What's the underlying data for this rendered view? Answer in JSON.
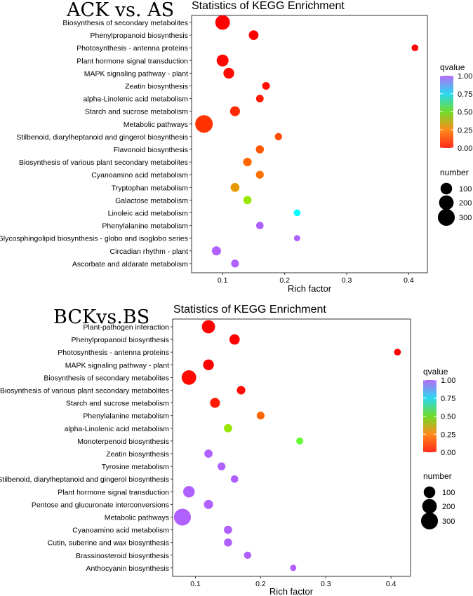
{
  "legend_labels": {
    "color_title": "qvalue",
    "size_title": "number"
  },
  "chart_data": [
    {
      "type": "scatter",
      "panel_label": "ACK vs. AS",
      "title": "Statistics of KEGG Enrichment",
      "xlabel": "Rich factor",
      "ylabel": "",
      "xlim": [
        0.05,
        0.43
      ],
      "x_ticks": [
        "0.1",
        "0.2",
        "0.3",
        "0.4"
      ],
      "x_tick_values": [
        0.1,
        0.2,
        0.3,
        0.4
      ],
      "color_scale": {
        "name": "qvalue",
        "range": [
          0,
          1
        ],
        "ticks": [
          "0.00",
          "0.25",
          "0.50",
          "0.75",
          "1.00"
        ],
        "colors": [
          "#ff0000",
          "#ff8000",
          "#80ff00",
          "#00ffff",
          "#b060ff"
        ]
      },
      "size_scale": {
        "name": "number",
        "values": [
          100,
          200,
          300
        ],
        "labels": [
          "100",
          "200",
          "300"
        ]
      },
      "grid": false,
      "legend_position": "right",
      "points": [
        {
          "pathway": "Biosynthesis of secondary metabolites",
          "rich_factor": 0.1,
          "qvalue": 0.0,
          "number": 200
        },
        {
          "pathway": "Phenylpropanoid biosynthesis",
          "rich_factor": 0.15,
          "qvalue": 0.0,
          "number": 55
        },
        {
          "pathway": "Photosynthesis - antenna proteins",
          "rich_factor": 0.41,
          "qvalue": 0.0,
          "number": 12
        },
        {
          "pathway": "Plant hormone signal transduction",
          "rich_factor": 0.1,
          "qvalue": 0.01,
          "number": 110
        },
        {
          "pathway": "MAPK signaling pathway - plant",
          "rich_factor": 0.11,
          "qvalue": 0.02,
          "number": 80
        },
        {
          "pathway": "Zeatin biosynthesis",
          "rich_factor": 0.17,
          "qvalue": 0.03,
          "number": 22
        },
        {
          "pathway": "alpha-Linolenic acid metabolism",
          "rich_factor": 0.16,
          "qvalue": 0.05,
          "number": 22
        },
        {
          "pathway": "Starch and sucrose metabolism",
          "rich_factor": 0.12,
          "qvalue": 0.08,
          "number": 60
        },
        {
          "pathway": "Metabolic pathways",
          "rich_factor": 0.07,
          "qvalue": 0.1,
          "number": 330
        },
        {
          "pathway": "Stilbenoid, diarylheptanoid and gingerol biosynthesis",
          "rich_factor": 0.19,
          "qvalue": 0.15,
          "number": 18
        },
        {
          "pathway": "Flavonoid biosynthesis",
          "rich_factor": 0.16,
          "qvalue": 0.17,
          "number": 28
        },
        {
          "pathway": "Biosynthesis of various plant secondary metabolites",
          "rich_factor": 0.14,
          "qvalue": 0.2,
          "number": 35
        },
        {
          "pathway": "Cyanoamino acid metabolism",
          "rich_factor": 0.16,
          "qvalue": 0.22,
          "number": 25
        },
        {
          "pathway": "Tryptophan metabolism",
          "rich_factor": 0.12,
          "qvalue": 0.3,
          "number": 40
        },
        {
          "pathway": "Galactose metabolism",
          "rich_factor": 0.14,
          "qvalue": 0.45,
          "number": 30
        },
        {
          "pathway": "Linoleic acid metabolism",
          "rich_factor": 0.22,
          "qvalue": 0.75,
          "number": 12
        },
        {
          "pathway": "Phenylalanine metabolism",
          "rich_factor": 0.16,
          "qvalue": 1.0,
          "number": 20
        },
        {
          "pathway": "Glycosphingolipid biosynthesis - globo and isoglobo series",
          "rich_factor": 0.22,
          "qvalue": 1.0,
          "number": 8
        },
        {
          "pathway": "Circadian rhythm - plant",
          "rich_factor": 0.09,
          "qvalue": 1.0,
          "number": 45
        },
        {
          "pathway": "Ascorbate and aldarate metabolism",
          "rich_factor": 0.12,
          "qvalue": 1.0,
          "number": 25
        }
      ]
    },
    {
      "type": "scatter",
      "panel_label": "BCKvs.BS",
      "title": "Statistics of KEGG Enrichment",
      "xlabel": "Rich factor",
      "ylabel": "",
      "xlim": [
        0.065,
        0.43
      ],
      "x_ticks": [
        "0.1",
        "0.2",
        "0.3",
        "0.4"
      ],
      "x_tick_values": [
        0.1,
        0.2,
        0.3,
        0.4
      ],
      "color_scale": {
        "name": "qvalue",
        "range": [
          0,
          1
        ],
        "ticks": [
          "0.00",
          "0.25",
          "0.50",
          "0.75",
          "1.00"
        ],
        "colors": [
          "#ff0000",
          "#ff8000",
          "#80ff00",
          "#00ffff",
          "#b060ff"
        ]
      },
      "size_scale": {
        "name": "number",
        "values": [
          100,
          200,
          300
        ],
        "labels": [
          "100",
          "200",
          "300"
        ]
      },
      "grid": false,
      "legend_position": "right",
      "points": [
        {
          "pathway": "Plant-pathogen interaction",
          "rich_factor": 0.12,
          "qvalue": 0.0,
          "number": 150
        },
        {
          "pathway": "Phenylpropanoid biosynthesis",
          "rich_factor": 0.16,
          "qvalue": 0.0,
          "number": 70
        },
        {
          "pathway": "Photosynthesis - antenna proteins",
          "rich_factor": 0.41,
          "qvalue": 0.0,
          "number": 12
        },
        {
          "pathway": "MAPK signaling pathway - plant",
          "rich_factor": 0.12,
          "qvalue": 0.0,
          "number": 80
        },
        {
          "pathway": "Biosynthesis of secondary metabolites",
          "rich_factor": 0.09,
          "qvalue": 0.02,
          "number": 200
        },
        {
          "pathway": "Biosynthesis of various plant secondary metabolites",
          "rich_factor": 0.17,
          "qvalue": 0.02,
          "number": 35
        },
        {
          "pathway": "Starch and sucrose metabolism",
          "rich_factor": 0.13,
          "qvalue": 0.05,
          "number": 60
        },
        {
          "pathway": "Phenylalanine metabolism",
          "rich_factor": 0.2,
          "qvalue": 0.2,
          "number": 25
        },
        {
          "pathway": "alpha-Linolenic acid metabolism",
          "rich_factor": 0.15,
          "qvalue": 0.45,
          "number": 30
        },
        {
          "pathway": "Monoterpenoid biosynthesis",
          "rich_factor": 0.26,
          "qvalue": 0.55,
          "number": 15
        },
        {
          "pathway": "Zeatin biosynthesis",
          "rich_factor": 0.12,
          "qvalue": 1.0,
          "number": 30
        },
        {
          "pathway": "Tyrosine metabolism",
          "rich_factor": 0.14,
          "qvalue": 1.0,
          "number": 25
        },
        {
          "pathway": "Stilbenoid, diarylheptanoid and gingerol biosynthesis",
          "rich_factor": 0.16,
          "qvalue": 1.0,
          "number": 20
        },
        {
          "pathway": "Plant hormone signal transduction",
          "rich_factor": 0.09,
          "qvalue": 1.0,
          "number": 100
        },
        {
          "pathway": "Pentose and glucuronate interconversions",
          "rich_factor": 0.12,
          "qvalue": 1.0,
          "number": 45
        },
        {
          "pathway": "Metabolic pathways",
          "rich_factor": 0.08,
          "qvalue": 1.0,
          "number": 300
        },
        {
          "pathway": "Cyanoamino acid metabolism",
          "rich_factor": 0.15,
          "qvalue": 1.0,
          "number": 30
        },
        {
          "pathway": "Cutin, suberine and wax biosynthesis",
          "rich_factor": 0.15,
          "qvalue": 1.0,
          "number": 28
        },
        {
          "pathway": "Brassinosteroid biosynthesis",
          "rich_factor": 0.18,
          "qvalue": 1.0,
          "number": 18
        },
        {
          "pathway": "Anthocyanin biosynthesis",
          "rich_factor": 0.25,
          "qvalue": 1.0,
          "number": 8
        }
      ]
    }
  ]
}
